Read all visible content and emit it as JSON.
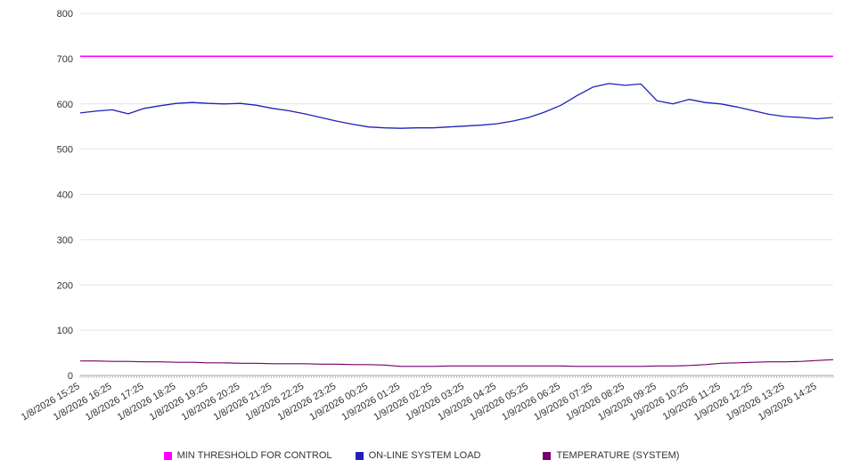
{
  "chart_data": {
    "type": "line",
    "title": "",
    "xlabel": "",
    "ylabel": "",
    "ylim": [
      0,
      800
    ],
    "y_ticks": [
      0,
      100,
      200,
      300,
      400,
      500,
      600,
      700,
      800
    ],
    "grid": true,
    "legend_position": "bottom",
    "x_labels": [
      "1/8/2026 15:25",
      "1/8/2026 16:25",
      "1/8/2026 17:25",
      "1/8/2026 18:25",
      "1/8/2026 19:25",
      "1/8/2026 20:25",
      "1/8/2026 21:25",
      "1/8/2026 22:25",
      "1/8/2026 23:25",
      "1/9/2026 00:25",
      "1/9/2026 01:25",
      "1/9/2026 02:25",
      "1/9/2026 03:25",
      "1/9/2026 04:25",
      "1/9/2026 05:25",
      "1/9/2026 06:25",
      "1/9/2026 07:25",
      "1/9/2026 08:25",
      "1/9/2026 09:25",
      "1/9/2026 10:25",
      "1/9/2026 11:25",
      "1/9/2026 12:25",
      "1/9/2026 13:25",
      "1/9/2026 14:25"
    ],
    "points_per_label_interval": 2,
    "series": [
      {
        "name": "MIN THRESHOLD FOR CONTROL",
        "color": "#ff00ff",
        "width": 1.6,
        "values": [
          705,
          705,
          705,
          705,
          705,
          705,
          705,
          705,
          705,
          705,
          705,
          705,
          705,
          705,
          705,
          705,
          705,
          705,
          705,
          705,
          705,
          705,
          705,
          705,
          705,
          705,
          705,
          705,
          705,
          705,
          705,
          705,
          705,
          705,
          705,
          705,
          705,
          705,
          705,
          705,
          705,
          705,
          705,
          705,
          705,
          705,
          705,
          705
        ]
      },
      {
        "name": "ON-LINE SYSTEM LOAD",
        "color": "#2121b8",
        "width": 1.3,
        "values": [
          580,
          584,
          587,
          578,
          590,
          596,
          601,
          603,
          601,
          600,
          601,
          597,
          590,
          585,
          578,
          570,
          562,
          555,
          549,
          547,
          546,
          547,
          547,
          549,
          551,
          553,
          556,
          562,
          570,
          582,
          597,
          618,
          637,
          645,
          641,
          644,
          607,
          600,
          610,
          603,
          600,
          593,
          585,
          577,
          572,
          570,
          567,
          570
        ]
      },
      {
        "name": "TEMPERATURE (SYSTEM)",
        "color": "#76006e",
        "width": 1.2,
        "values": [
          32,
          32,
          31,
          31,
          30,
          30,
          29,
          29,
          28,
          28,
          27,
          27,
          26,
          26,
          26,
          25,
          25,
          24,
          24,
          23,
          20,
          20,
          20,
          21,
          21,
          21,
          21,
          21,
          21,
          21,
          21,
          20,
          20,
          20,
          20,
          20,
          21,
          21,
          22,
          24,
          27,
          28,
          29,
          30,
          30,
          31,
          33,
          35
        ]
      }
    ],
    "colors": {
      "grid": "#e4e4e4",
      "axis": "#aaaaaa",
      "tick": "#999999",
      "label": "#333333"
    }
  }
}
